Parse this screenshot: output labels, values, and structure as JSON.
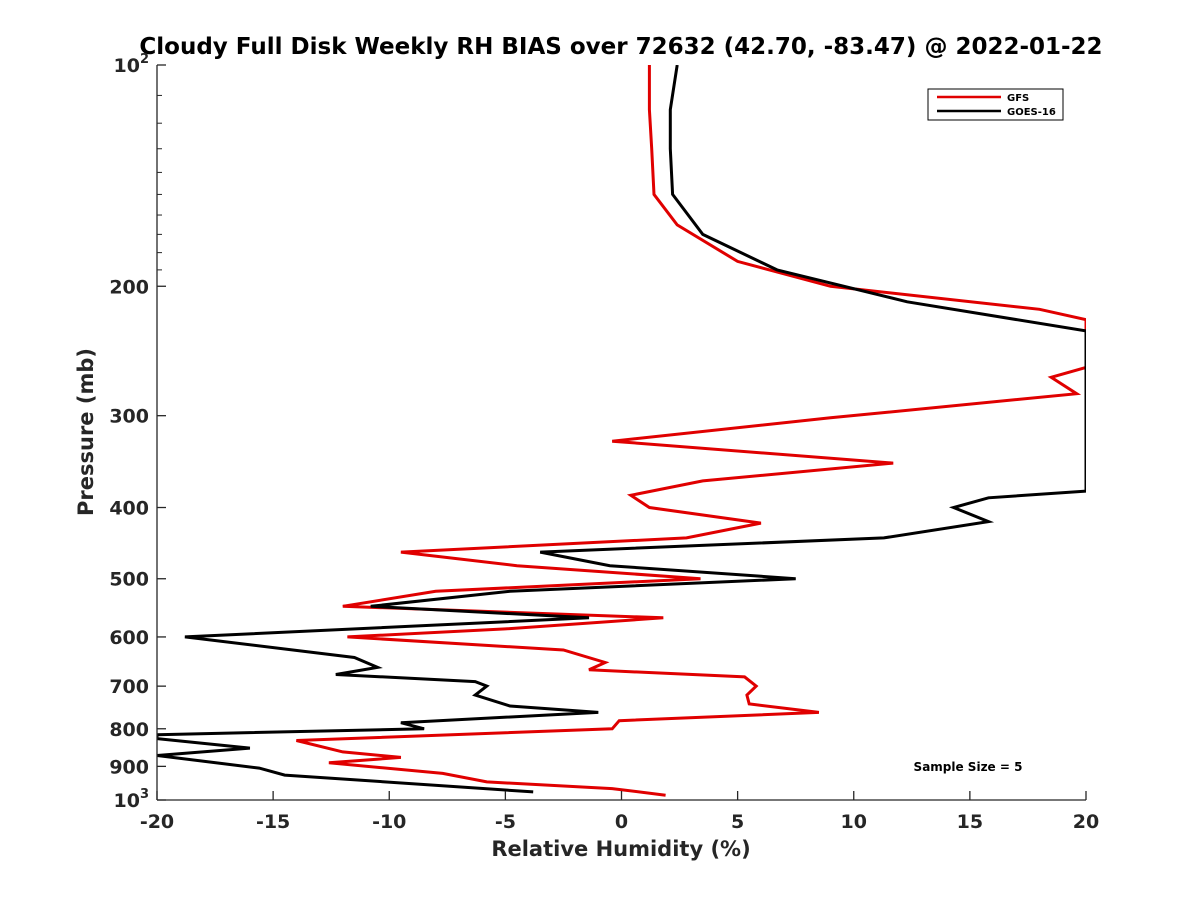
{
  "chart_data": {
    "type": "line",
    "title": "Cloudy Full Disk Weekly RH BIAS over 72632 (42.70, -83.47) @ 2022-01-22",
    "xlabel": "Relative Humidity (%)",
    "ylabel": "Pressure (mb)",
    "xlim": [
      -20,
      20
    ],
    "ylim": [
      100,
      1000
    ],
    "yscale": "log",
    "y_reversed": true,
    "xticks": [
      "-20",
      "-15",
      "-10",
      "-5",
      "0",
      "5",
      "10",
      "15",
      "20"
    ],
    "yticks": [
      {
        "value": 100,
        "base": "10",
        "exp": "2"
      },
      {
        "value": 200,
        "label": "200"
      },
      {
        "value": 300,
        "label": "300"
      },
      {
        "value": 400,
        "label": "400"
      },
      {
        "value": 500,
        "label": "500"
      },
      {
        "value": 600,
        "label": "600"
      },
      {
        "value": 700,
        "label": "700"
      },
      {
        "value": 800,
        "label": "800"
      },
      {
        "value": 900,
        "label": "900"
      },
      {
        "value": 1000,
        "base": "10",
        "exp": "3"
      }
    ],
    "grid": false,
    "legend_position": "top-right",
    "annotation": "Sample Size = 5",
    "series": [
      {
        "name": "GFS",
        "color": "#e00000",
        "points": [
          [
            1.2,
            100
          ],
          [
            1.2,
            115
          ],
          [
            1.3,
            130
          ],
          [
            1.4,
            150
          ],
          [
            2.4,
            165
          ],
          [
            5.0,
            185
          ],
          [
            9.0,
            200
          ],
          [
            18.0,
            215
          ],
          [
            20.0,
            222
          ],
          [
            20.0,
            258
          ],
          [
            18.5,
            266
          ],
          [
            19.6,
            280
          ],
          [
            9.0,
            302
          ],
          [
            -0.4,
            325
          ],
          [
            11.7,
            348
          ],
          [
            3.5,
            368
          ],
          [
            0.4,
            385
          ],
          [
            1.2,
            400
          ],
          [
            6.0,
            420
          ],
          [
            2.8,
            440
          ],
          [
            -9.5,
            460
          ],
          [
            -4.5,
            480
          ],
          [
            3.4,
            500
          ],
          [
            -8.0,
            520
          ],
          [
            -12.0,
            545
          ],
          [
            1.8,
            565
          ],
          [
            -5.0,
            585
          ],
          [
            -11.8,
            600
          ],
          [
            -2.5,
            625
          ],
          [
            -0.7,
            650
          ],
          [
            -1.4,
            665
          ],
          [
            5.3,
            680
          ],
          [
            5.8,
            700
          ],
          [
            5.4,
            720
          ],
          [
            5.5,
            740
          ],
          [
            8.5,
            760
          ],
          [
            -0.1,
            780
          ],
          [
            -0.4,
            800
          ],
          [
            -14.0,
            830
          ],
          [
            -12.0,
            860
          ],
          [
            -9.5,
            875
          ],
          [
            -12.6,
            890
          ],
          [
            -7.7,
            920
          ],
          [
            -5.8,
            945
          ],
          [
            -0.4,
            965
          ],
          [
            1.9,
            985
          ]
        ]
      },
      {
        "name": "GOES-16",
        "color": "#000000",
        "points": [
          [
            2.4,
            100
          ],
          [
            2.1,
            115
          ],
          [
            2.1,
            130
          ],
          [
            2.2,
            150
          ],
          [
            3.5,
            170
          ],
          [
            6.7,
            190
          ],
          [
            12.3,
            210
          ],
          [
            20.0,
            230
          ],
          [
            20.0,
            380
          ],
          [
            15.8,
            388
          ],
          [
            14.3,
            400
          ],
          [
            15.8,
            418
          ],
          [
            11.3,
            440
          ],
          [
            -3.5,
            460
          ],
          [
            -0.5,
            480
          ],
          [
            7.5,
            500
          ],
          [
            -4.8,
            520
          ],
          [
            -10.8,
            545
          ],
          [
            -1.4,
            565
          ],
          [
            -18.8,
            600
          ],
          [
            -11.5,
            640
          ],
          [
            -10.5,
            660
          ],
          [
            -12.3,
            675
          ],
          [
            -6.3,
            690
          ],
          [
            -5.8,
            700
          ],
          [
            -6.3,
            720
          ],
          [
            -4.8,
            745
          ],
          [
            -1.0,
            760
          ],
          [
            -9.5,
            785
          ],
          [
            -8.5,
            800
          ],
          [
            -20.0,
            815
          ],
          [
            -20.0,
            825
          ],
          [
            -16.0,
            850
          ],
          [
            -20.0,
            870
          ],
          [
            -15.6,
            905
          ],
          [
            -14.5,
            925
          ],
          [
            -3.8,
            975
          ]
        ]
      }
    ]
  }
}
